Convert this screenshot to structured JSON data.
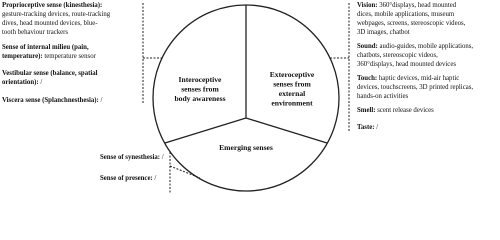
{
  "sectors": [
    {
      "lines": [
        "Interoceptive",
        "senses from",
        "body awareness"
      ]
    },
    {
      "lines": [
        "Exteroceptive",
        "senses from",
        "external",
        "environment"
      ]
    },
    {
      "lines": [
        "Emerging senses"
      ]
    }
  ],
  "left": [
    {
      "lines": [
        {
          "bold": "Proprioceptive sense (kinesthesia):"
        },
        {
          "text": "gesture-tracking devices, route-tracking"
        },
        {
          "text": "dives, head mounted devices, blue-"
        },
        {
          "text": "tooth behaviour trackers"
        }
      ]
    },
    {
      "lines": [
        {
          "bold": "Sense of internal milieu (pain,"
        },
        {
          "bold": "temperature):",
          "text": " temperature sensor"
        }
      ]
    },
    {
      "lines": [
        {
          "bold": "Vestibular sense (balance, spatial"
        },
        {
          "bold": "orientation):",
          "text": " /"
        }
      ]
    },
    {
      "lines": [
        {
          "bold": "Viscera sense (Splanchnesthesia):",
          "text": " /"
        }
      ]
    }
  ],
  "right": [
    {
      "lines": [
        {
          "bold": "Vision:",
          "text": " 360°displays, head mounted"
        },
        {
          "text": "dices, mobile applications, museum"
        },
        {
          "text": "webpages, screens, stereoscopic videos,"
        },
        {
          "text": "3D images, chatbot"
        }
      ]
    },
    {
      "lines": [
        {
          "bold": "Sound:",
          "text": " audio-guides, mobile applications,"
        },
        {
          "text": "chatbots, stereoscopic videos,"
        },
        {
          "text": "360°displays, head mounted devices"
        }
      ]
    },
    {
      "lines": [
        {
          "bold": "Touch:",
          "text": " haptic devices, mid-air haptic"
        },
        {
          "text": "devices, touchscreens, 3D printed replicas,"
        },
        {
          "text": "hands-on activities"
        }
      ]
    },
    {
      "lines": [
        {
          "bold": "Smell:",
          "text": " scent release devices"
        }
      ]
    },
    {
      "lines": [
        {
          "bold": "Taste:",
          "text": " /"
        }
      ]
    }
  ],
  "bottom": [
    {
      "lines": [
        {
          "bold": "Sense of synesthesia:",
          "text": " /"
        }
      ]
    },
    {
      "lines": [
        {
          "bold": "Sense of presence:",
          "text": " /"
        }
      ]
    }
  ]
}
